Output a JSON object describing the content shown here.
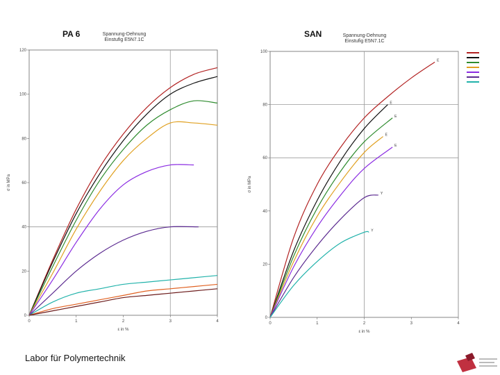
{
  "footer": {
    "text": "Labor für Polymertechnik"
  },
  "chart_data": [
    {
      "type": "line",
      "title": "PA 6",
      "subtitle": [
        "Spannung-Dehnung",
        "Einstufig E5N7.1C"
      ],
      "xlabel": "ε in %",
      "ylabel": "σ in MPa",
      "xlim": [
        0,
        4
      ],
      "ylim": [
        0,
        120
      ],
      "xticks": [
        0,
        1,
        2,
        3,
        4
      ],
      "yticks": [
        0,
        20,
        40,
        60,
        80,
        100,
        120
      ],
      "ytick_labels": [
        "0",
        "20",
        "40",
        "60",
        "80",
        "100",
        "120"
      ],
      "grid": {
        "x": [
          3
        ],
        "y": [
          40
        ]
      },
      "series": [
        {
          "color": "#b22222",
          "x": [
            0,
            0.5,
            1,
            1.5,
            2,
            2.5,
            3,
            3.5,
            4
          ],
          "y": [
            0,
            25,
            48,
            67,
            82,
            94,
            103,
            109,
            112
          ]
        },
        {
          "color": "#111111",
          "x": [
            0,
            0.5,
            1,
            1.5,
            2,
            2.5,
            3,
            3.5,
            4
          ],
          "y": [
            0,
            24,
            46,
            64,
            79,
            91,
            100,
            105,
            108
          ]
        },
        {
          "color": "#2e8b2e",
          "x": [
            0,
            0.5,
            1,
            1.5,
            2,
            2.5,
            3,
            3.5,
            4
          ],
          "y": [
            0,
            22,
            43,
            61,
            75,
            86,
            93,
            97,
            96
          ]
        },
        {
          "color": "#e0a020",
          "x": [
            0,
            0.5,
            1,
            1.5,
            2,
            2.5,
            3,
            3.5,
            4
          ],
          "y": [
            0,
            19,
            39,
            56,
            70,
            80,
            87,
            87,
            86
          ]
        },
        {
          "color": "#8a2be2",
          "x": [
            0,
            0.5,
            1,
            1.5,
            2,
            2.5,
            3,
            3.5
          ],
          "y": [
            0,
            16,
            33,
            48,
            59,
            65,
            68,
            68
          ]
        },
        {
          "color": "#5b2a90",
          "x": [
            0,
            0.5,
            1,
            1.5,
            2,
            2.5,
            3,
            3.6
          ],
          "y": [
            0,
            10,
            20,
            28,
            34,
            38,
            40,
            40
          ]
        },
        {
          "color": "#20b2aa",
          "x": [
            0,
            0.5,
            1,
            1.5,
            2,
            2.5,
            3,
            3.5,
            4
          ],
          "y": [
            0,
            6,
            10,
            12,
            14,
            15,
            16,
            17,
            18
          ]
        },
        {
          "color": "#e06020",
          "x": [
            0,
            0.5,
            1,
            1.5,
            2,
            2.5,
            3,
            3.5,
            4
          ],
          "y": [
            0,
            3,
            5,
            7,
            9,
            11,
            12,
            13,
            14
          ]
        },
        {
          "color": "#6b1a1a",
          "x": [
            0,
            0.5,
            1,
            1.5,
            2,
            2.5,
            3,
            3.5,
            4
          ],
          "y": [
            0,
            2,
            4,
            6,
            8,
            9,
            10,
            11,
            12
          ]
        }
      ]
    },
    {
      "type": "line",
      "title": "SAN",
      "subtitle": [
        "Spannung-Dehnung",
        "Einstufig E5N7.1C"
      ],
      "xlabel": "ε in %",
      "ylabel": "σ in MPa",
      "xlim": [
        0,
        4
      ],
      "ylim": [
        0,
        100
      ],
      "xticks": [
        0,
        1,
        2,
        3,
        4
      ],
      "yticks": [
        0,
        20,
        40,
        60,
        80,
        100
      ],
      "ytick_labels": [
        "0",
        "20",
        "40",
        "60",
        "80",
        "100"
      ],
      "grid": {
        "x": [
          2,
          4
        ],
        "y": [
          60,
          80
        ]
      },
      "series": [
        {
          "color": "#b22222",
          "end_label": "E",
          "x": [
            0,
            0.5,
            1,
            1.5,
            2,
            2.5,
            3,
            3.5
          ],
          "y": [
            0,
            30,
            50,
            64,
            75,
            83,
            90,
            96
          ]
        },
        {
          "color": "#111111",
          "end_label": "E",
          "x": [
            0,
            0.5,
            1,
            1.5,
            2,
            2.5
          ],
          "y": [
            0,
            25,
            44,
            59,
            71,
            80
          ]
        },
        {
          "color": "#2e8b2e",
          "end_label": "E",
          "x": [
            0,
            0.5,
            1,
            1.5,
            2,
            2.6
          ],
          "y": [
            0,
            23,
            41,
            55,
            66,
            75
          ]
        },
        {
          "color": "#e0a020",
          "end_label": "E",
          "x": [
            0,
            0.5,
            1,
            1.5,
            2,
            2.4
          ],
          "y": [
            0,
            21,
            38,
            51,
            62,
            68
          ]
        },
        {
          "color": "#8a2be2",
          "end_label": "E",
          "x": [
            0,
            0.5,
            1,
            1.5,
            2,
            2.6
          ],
          "y": [
            0,
            19,
            34,
            46,
            56,
            64
          ]
        },
        {
          "color": "#5b2a90",
          "end_label": "Y",
          "x": [
            0,
            0.5,
            1,
            1.5,
            2,
            2.3
          ],
          "y": [
            0,
            15,
            27,
            37,
            45,
            46
          ]
        },
        {
          "color": "#20b2aa",
          "end_label": "Y",
          "x": [
            0,
            0.5,
            1,
            1.5,
            2,
            2.1
          ],
          "y": [
            0,
            12,
            21,
            28,
            32,
            32
          ]
        }
      ]
    }
  ],
  "legend": {
    "colors": [
      "#b22222",
      "#111111",
      "#2e8b2e",
      "#e0a020",
      "#8a2be2",
      "#5b2a90",
      "#20b2aa"
    ]
  },
  "logo": {
    "colors": [
      "#c03040",
      "#8b1a2a"
    ]
  }
}
